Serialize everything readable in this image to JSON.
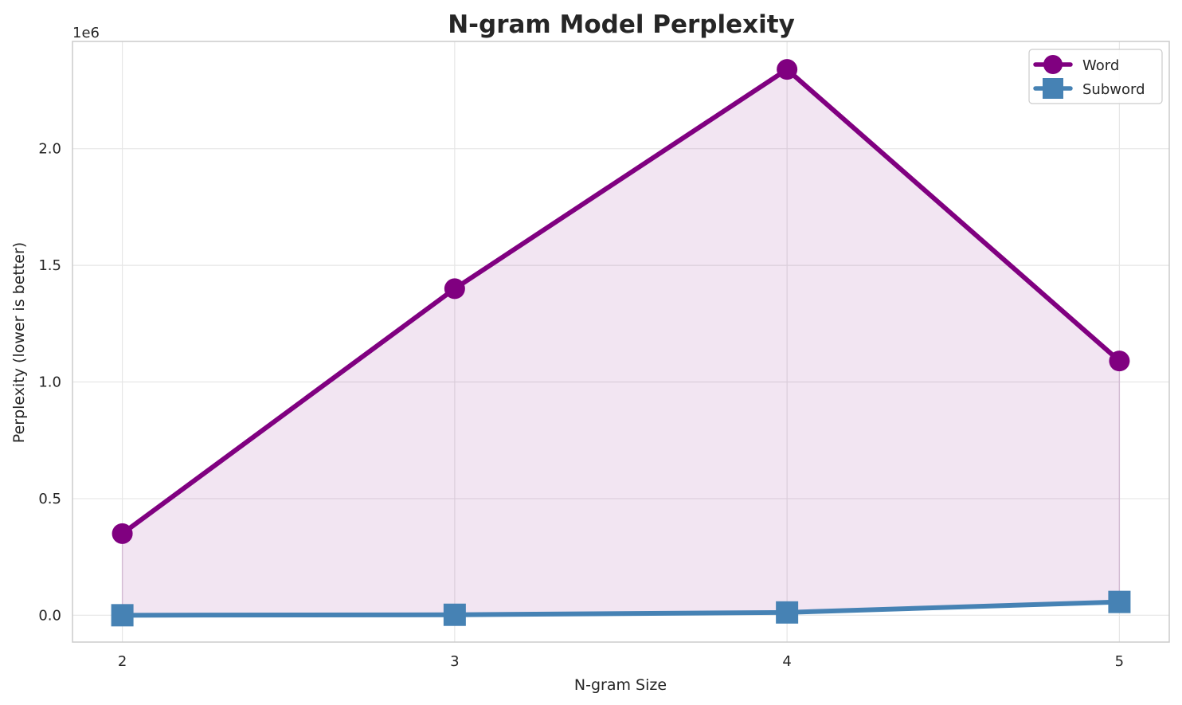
{
  "chart_data": {
    "type": "line",
    "title": "N-gram Model Perplexity",
    "xlabel": "N-gram Size",
    "ylabel": "Perplexity (lower is better)",
    "y_offset_label": "1e6",
    "x": [
      2,
      3,
      4,
      5
    ],
    "x_tick_labels": [
      "2",
      "3",
      "4",
      "5"
    ],
    "xlim": [
      1.85,
      5.15
    ],
    "ylim": [
      -0.115,
      2.46
    ],
    "y_scale_note": "values in millions (×1e6)",
    "y_ticks": [
      0.0,
      0.5,
      1.0,
      1.5,
      2.0
    ],
    "y_tick_labels": [
      "0.0",
      "0.5",
      "1.0",
      "1.5",
      "2.0"
    ],
    "grid": true,
    "legend_position": "top-right",
    "series": [
      {
        "name": "Word",
        "values": [
          0.35,
          1.4,
          2.34,
          1.09
        ],
        "color": "#800080",
        "marker": "circle",
        "fill_under": true,
        "fill_color": "#800080"
      },
      {
        "name": "Subword",
        "values": [
          0.0,
          0.002,
          0.012,
          0.057
        ],
        "color": "#4682b4",
        "marker": "square",
        "fill_under": false
      }
    ]
  }
}
